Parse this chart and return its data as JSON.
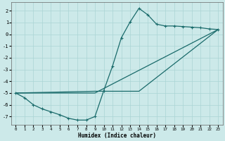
{
  "xlabel": "Humidex (Indice chaleur)",
  "xlim": [
    -0.5,
    23.5
  ],
  "ylim": [
    -7.7,
    2.7
  ],
  "xticks": [
    0,
    1,
    2,
    3,
    4,
    5,
    6,
    7,
    8,
    9,
    10,
    11,
    12,
    13,
    14,
    15,
    16,
    17,
    18,
    19,
    20,
    21,
    22,
    23
  ],
  "yticks": [
    -7,
    -6,
    -5,
    -4,
    -3,
    -2,
    -1,
    0,
    1,
    2
  ],
  "bg_color": "#cce9e9",
  "line_color": "#1a6b6b",
  "grid_color": "#aad4d4",
  "line1_x": [
    0,
    1,
    2,
    3,
    4,
    5,
    6,
    7,
    8,
    9,
    10,
    11,
    12,
    13,
    14,
    15,
    16,
    17,
    18,
    19,
    20,
    21,
    22,
    23
  ],
  "line1_y": [
    -5.0,
    -5.4,
    -6.0,
    -6.35,
    -6.6,
    -6.85,
    -7.15,
    -7.3,
    -7.3,
    -7.0,
    -4.8,
    -2.7,
    -0.3,
    1.05,
    2.2,
    1.65,
    0.85,
    0.7,
    0.7,
    0.65,
    0.6,
    0.55,
    0.45,
    0.4
  ],
  "line2_x": [
    0,
    9,
    23
  ],
  "line2_y": [
    -5.0,
    -5.0,
    0.4
  ],
  "line3_x": [
    0,
    9,
    14,
    23
  ],
  "line3_y": [
    -5.0,
    -4.85,
    -4.85,
    0.4
  ]
}
